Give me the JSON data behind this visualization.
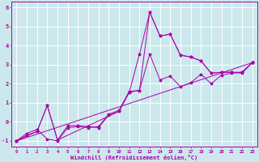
{
  "xlabel": "Windchill (Refroidissement éolien,°C)",
  "xlim": [
    -0.5,
    23.5
  ],
  "ylim": [
    -1.3,
    6.3
  ],
  "xticks": [
    0,
    1,
    2,
    3,
    4,
    5,
    6,
    7,
    8,
    9,
    10,
    11,
    12,
    13,
    14,
    15,
    16,
    17,
    18,
    19,
    20,
    21,
    22,
    23
  ],
  "yticks": [
    -1,
    0,
    1,
    2,
    3,
    4,
    5,
    6
  ],
  "bg_color": "#cce8ec",
  "line_color": "#aa00aa",
  "grid_color": "#ffffff",
  "lines": [
    {
      "x": [
        0,
        1,
        2,
        3,
        4,
        5,
        6,
        7,
        8,
        9,
        10,
        11,
        12,
        13,
        14,
        15,
        16,
        17,
        18,
        19,
        20,
        21,
        22,
        23
      ],
      "y": [
        -1.0,
        -0.7,
        -0.5,
        0.85,
        -0.95,
        -0.2,
        -0.2,
        -0.25,
        -0.3,
        0.35,
        0.55,
        1.55,
        3.55,
        5.75,
        4.5,
        4.6,
        3.5,
        3.4,
        3.2,
        2.55,
        2.6,
        2.6,
        2.6,
        3.1
      ]
    },
    {
      "x": [
        0,
        1,
        2,
        3,
        4,
        5,
        6,
        7,
        8,
        9,
        10,
        11,
        12,
        13,
        14,
        15,
        16,
        17,
        18,
        19,
        20,
        21,
        22,
        23
      ],
      "y": [
        -1.0,
        -0.6,
        -0.4,
        -0.9,
        -1.0,
        -0.3,
        -0.25,
        -0.3,
        -0.25,
        0.4,
        0.6,
        1.6,
        1.65,
        5.75,
        4.5,
        4.6,
        3.5,
        3.4,
        3.2,
        2.55,
        2.6,
        2.6,
        2.55,
        3.1
      ]
    },
    {
      "x": [
        0,
        2,
        3,
        4,
        10,
        11,
        12,
        13,
        14,
        15,
        16,
        17,
        18,
        19,
        20,
        21,
        22,
        23
      ],
      "y": [
        -1.0,
        -0.5,
        0.85,
        -0.95,
        0.55,
        1.55,
        1.65,
        3.55,
        2.2,
        2.4,
        1.85,
        2.05,
        2.5,
        2.0,
        2.45,
        2.55,
        2.6,
        3.1
      ]
    },
    {
      "x": [
        0,
        23
      ],
      "y": [
        -1.0,
        3.1
      ]
    }
  ]
}
